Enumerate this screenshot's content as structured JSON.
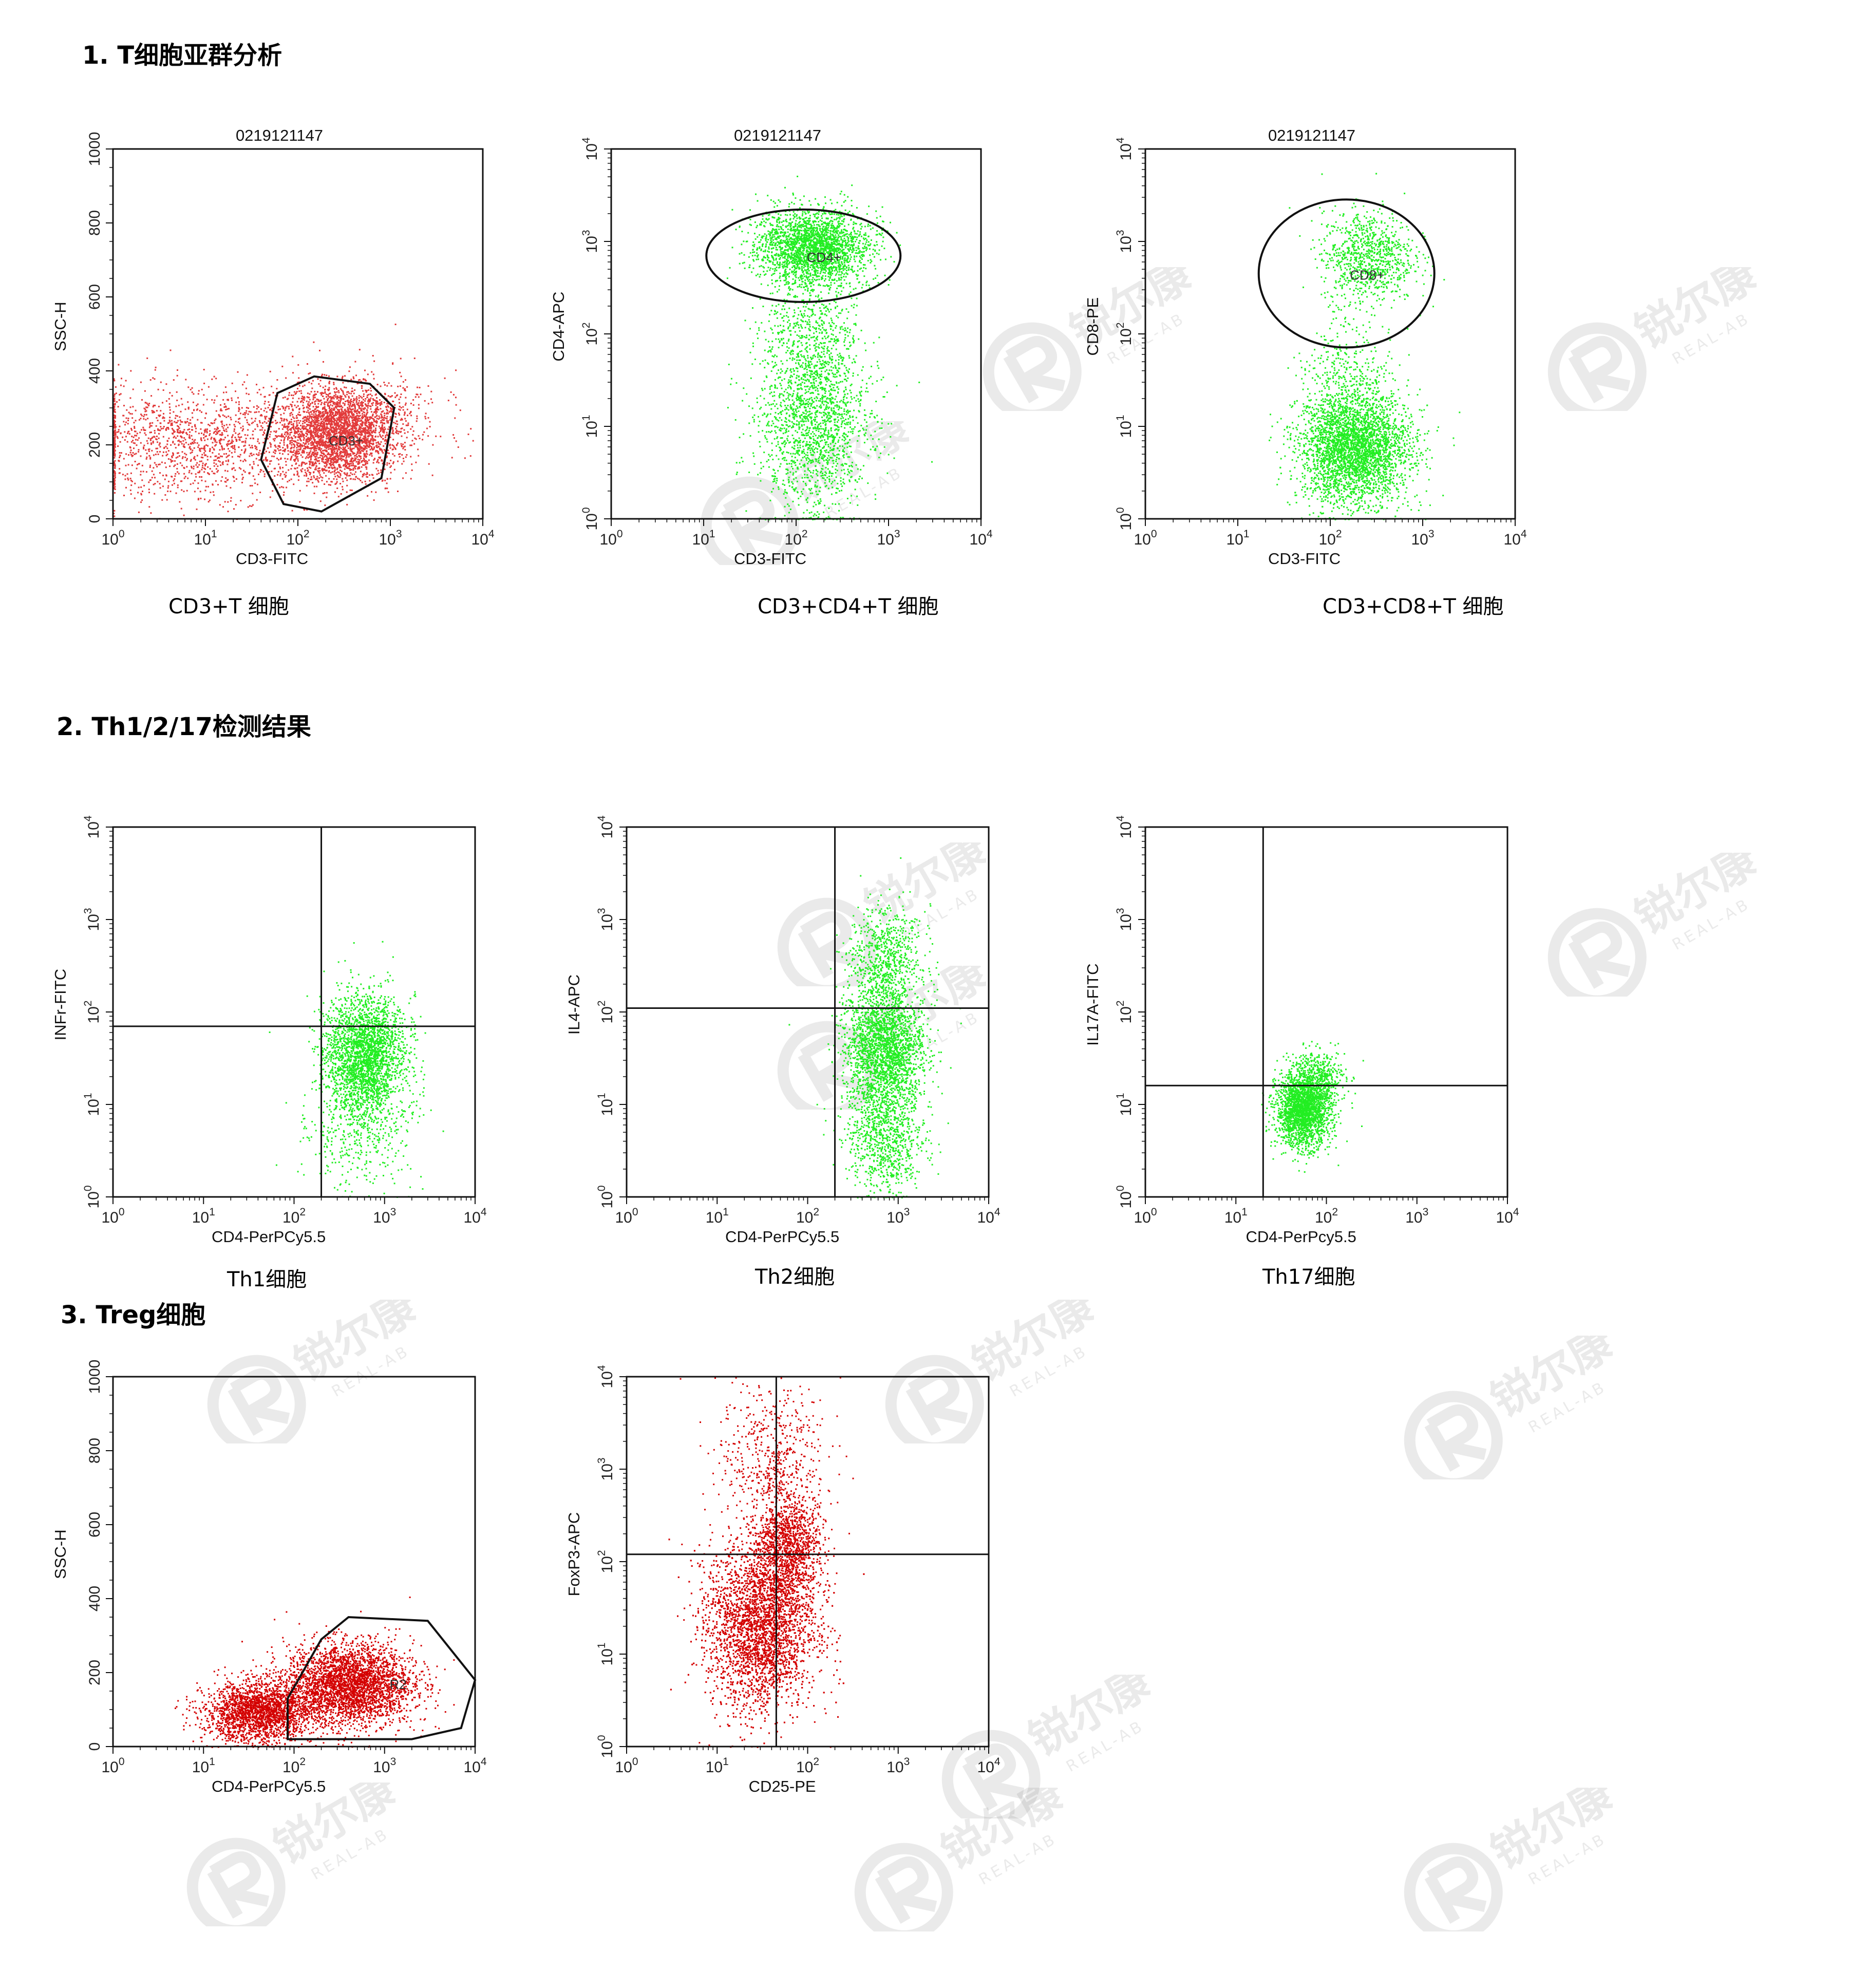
{
  "sections": {
    "s1": "1. T细胞亚群分析",
    "s2": "2. Th1/2/17检测结果",
    "s3": "3. Treg细胞"
  },
  "captions": {
    "p1": "CD3+T 细胞",
    "p2": "CD3+CD4+T 细胞",
    "p3": "CD3+CD8+T 细胞",
    "p4": "Th1细胞",
    "p5": "Th2细胞",
    "p6": "Th17细胞"
  },
  "watermark": {
    "brand": "锐尔康",
    "sub": "REAL-AB",
    "icon": "r-logo-icon"
  },
  "colors": {
    "green": "#22ee22",
    "salmon": "#e23a3a",
    "red": "#d40000"
  },
  "chart_data": [
    {
      "id": "p1",
      "type": "scatter",
      "title": "0219121147",
      "xlabel": "CD3-FITC",
      "ylabel": "SSC-H",
      "xscale": "log",
      "yscale": "linear",
      "xlim": [
        1,
        10000
      ],
      "ylim": [
        0,
        1000
      ],
      "xticks": [
        1,
        10,
        100,
        1000,
        10000
      ],
      "yticks": [
        0,
        200,
        400,
        600,
        800,
        1000
      ],
      "color": "salmon",
      "populations": [
        {
          "cx": 250,
          "cy": 230,
          "sx": 0.3,
          "sy": 60,
          "n": 2600
        },
        {
          "cx": 8,
          "cy": 210,
          "sx": 0.7,
          "sy": 75,
          "n": 1500
        },
        {
          "cx": 500,
          "cy": 260,
          "sx": 0.4,
          "sy": 70,
          "n": 700
        }
      ],
      "gates": [
        {
          "label": "CD3+",
          "shape": "polygon",
          "points": [
            [
              40,
              160
            ],
            [
              60,
              340
            ],
            [
              150,
              385
            ],
            [
              600,
              365
            ],
            [
              1100,
              300
            ],
            [
              800,
              110
            ],
            [
              180,
              20
            ],
            [
              70,
              40
            ]
          ]
        }
      ]
    },
    {
      "id": "p2",
      "type": "scatter",
      "title": "0219121147",
      "xlabel": "CD3-FITC",
      "ylabel": "CD4-APC",
      "xscale": "log",
      "yscale": "log",
      "xlim": [
        1,
        10000
      ],
      "ylim": [
        1,
        10000
      ],
      "xticks": [
        1,
        10,
        100,
        1000,
        10000
      ],
      "yticks": [
        1,
        10,
        100,
        1000,
        10000
      ],
      "color": "green",
      "populations": [
        {
          "cx": 150,
          "cy": 900,
          "sx": 0.3,
          "sy": 0.2,
          "n": 2400
        },
        {
          "cx": 150,
          "cy": 12,
          "sx": 0.3,
          "sy": 0.5,
          "n": 1800
        },
        {
          "cx": 150,
          "cy": 120,
          "sx": 0.25,
          "sy": 0.4,
          "n": 500
        }
      ],
      "gates": [
        {
          "label": "CD4+",
          "shape": "ellipse",
          "cx": 120,
          "cy": 700,
          "rx": 1.05,
          "ry": 0.5
        }
      ]
    },
    {
      "id": "p3",
      "type": "scatter",
      "title": "0219121147",
      "xlabel": "CD3-FITC",
      "ylabel": "CD8-PE",
      "xscale": "log",
      "yscale": "log",
      "xlim": [
        1,
        10000
      ],
      "ylim": [
        1,
        10000
      ],
      "xticks": [
        1,
        10,
        100,
        1000,
        10000
      ],
      "yticks": [
        1,
        10,
        100,
        1000,
        10000
      ],
      "color": "green",
      "populations": [
        {
          "cx": 250,
          "cy": 700,
          "sx": 0.25,
          "sy": 0.25,
          "n": 900
        },
        {
          "cx": 180,
          "cy": 6,
          "sx": 0.3,
          "sy": 0.3,
          "n": 3600
        },
        {
          "cx": 150,
          "cy": 40,
          "sx": 0.25,
          "sy": 0.3,
          "n": 300
        }
      ],
      "gates": [
        {
          "label": "CD8+",
          "shape": "ellipse",
          "cx": 150,
          "cy": 450,
          "rx": 0.95,
          "ry": 0.8
        }
      ]
    },
    {
      "id": "p4",
      "type": "scatter",
      "title": "",
      "xlabel": "CD4-PerPCy5.5",
      "ylabel": "INFr-FITC",
      "xscale": "log",
      "yscale": "log",
      "xlim": [
        1,
        10000
      ],
      "ylim": [
        1,
        10000
      ],
      "xticks": [
        1,
        10,
        100,
        1000,
        10000
      ],
      "yticks": [
        1,
        10,
        100,
        1000,
        10000
      ],
      "color": "green",
      "quadrant": {
        "x": 200,
        "y": 70
      },
      "populations": [
        {
          "cx": 600,
          "cy": 35,
          "sx": 0.22,
          "sy": 0.32,
          "n": 2600
        },
        {
          "cx": 500,
          "cy": 5,
          "sx": 0.3,
          "sy": 0.3,
          "n": 400
        }
      ]
    },
    {
      "id": "p5",
      "type": "scatter",
      "title": "",
      "xlabel": "CD4-PerPCy5.5",
      "ylabel": "IL4-APC",
      "xscale": "log",
      "yscale": "log",
      "xlim": [
        1,
        10000
      ],
      "ylim": [
        1,
        10000
      ],
      "xticks": [
        1,
        10,
        100,
        1000,
        10000
      ],
      "yticks": [
        1,
        10,
        100,
        1000,
        10000
      ],
      "color": "green",
      "quadrant": {
        "x": 200,
        "y": 110
      },
      "populations": [
        {
          "cx": 700,
          "cy": 40,
          "sx": 0.22,
          "sy": 0.35,
          "n": 2400
        },
        {
          "cx": 700,
          "cy": 400,
          "sx": 0.2,
          "sy": 0.28,
          "n": 700
        },
        {
          "cx": 700,
          "cy": 4,
          "sx": 0.22,
          "sy": 0.3,
          "n": 800
        }
      ]
    },
    {
      "id": "p6",
      "type": "scatter",
      "title": "",
      "xlabel": "CD4-PerPcy5.5",
      "ylabel": "IL17A-FITC",
      "xscale": "log",
      "yscale": "log",
      "xlim": [
        1,
        10000
      ],
      "ylim": [
        1,
        10000
      ],
      "xticks": [
        1,
        10,
        100,
        1000,
        10000
      ],
      "yticks": [
        1,
        10,
        100,
        1000,
        10000
      ],
      "color": "green",
      "quadrant": {
        "x": 20,
        "y": 16
      },
      "populations": [
        {
          "cx": 55,
          "cy": 9,
          "sx": 0.15,
          "sy": 0.2,
          "n": 2200
        },
        {
          "cx": 80,
          "cy": 20,
          "sx": 0.15,
          "sy": 0.15,
          "n": 400
        }
      ]
    },
    {
      "id": "p7",
      "type": "scatter",
      "title": "",
      "xlabel": "CD4-PerPCy5.5",
      "ylabel": "SSC-H",
      "xscale": "log",
      "yscale": "linear",
      "xlim": [
        1,
        10000
      ],
      "ylim": [
        0,
        1000
      ],
      "xticks": [
        1,
        10,
        100,
        1000,
        10000
      ],
      "yticks": [
        0,
        200,
        400,
        600,
        800,
        1000
      ],
      "color": "red",
      "populations": [
        {
          "cx": 40,
          "cy": 95,
          "sx": 0.3,
          "sy": 40,
          "n": 2200
        },
        {
          "cx": 400,
          "cy": 170,
          "sx": 0.35,
          "sy": 55,
          "n": 3200
        }
      ],
      "gates": [
        {
          "label": "R2",
          "shape": "polygon",
          "points": [
            [
              85,
              20
            ],
            [
              85,
              130
            ],
            [
              200,
              290
            ],
            [
              400,
              350
            ],
            [
              3000,
              340
            ],
            [
              10000,
              180
            ],
            [
              7000,
              50
            ],
            [
              2000,
              20
            ]
          ]
        }
      ]
    },
    {
      "id": "p8",
      "type": "scatter",
      "title": "",
      "xlabel": "CD25-PE",
      "ylabel": "FoxP3-APC",
      "xscale": "log",
      "yscale": "log",
      "xlim": [
        1,
        10000
      ],
      "ylim": [
        1,
        10000
      ],
      "xticks": [
        1,
        10,
        100,
        1000,
        10000
      ],
      "yticks": [
        1,
        10,
        100,
        1000,
        10000
      ],
      "color": "red",
      "quadrant": {
        "x": 45,
        "y": 120
      },
      "populations": [
        {
          "cx": 30,
          "cy": 20,
          "sx": 0.3,
          "sy": 0.45,
          "n": 5000
        },
        {
          "cx": 60,
          "cy": 150,
          "sx": 0.18,
          "sy": 0.3,
          "n": 1300
        },
        {
          "cx": 40,
          "cy": 1500,
          "sx": 0.3,
          "sy": 0.4,
          "n": 500
        }
      ]
    }
  ]
}
